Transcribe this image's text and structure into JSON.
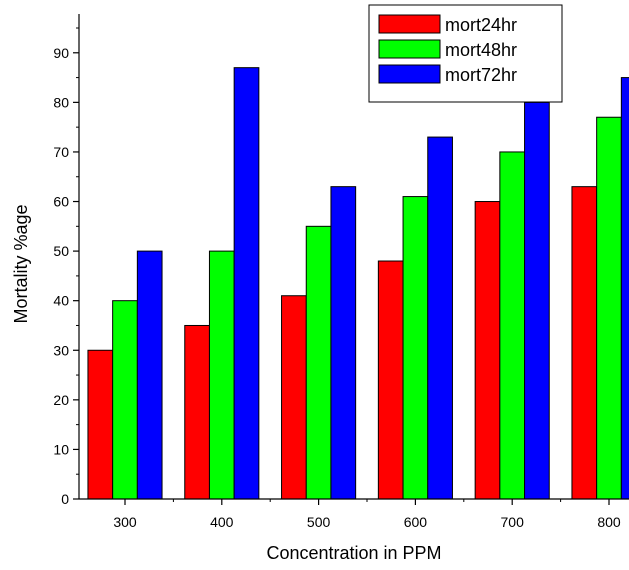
{
  "chart_data": {
    "type": "bar",
    "categories": [
      "300",
      "400",
      "500",
      "600",
      "700",
      "800"
    ],
    "series": [
      {
        "name": "mort24hr",
        "color": "#ff0000",
        "values": [
          30,
          35,
          41,
          48,
          60,
          63
        ]
      },
      {
        "name": "mort48hr",
        "color": "#00ff00",
        "values": [
          40,
          50,
          55,
          61,
          70,
          77
        ]
      },
      {
        "name": "mort72hr",
        "color": "#0000ff",
        "values": [
          50,
          87,
          63,
          73,
          80,
          85
        ]
      }
    ],
    "xlabel": "Concentration in PPM",
    "ylabel": "Mortality %age",
    "ylim": [
      0,
      95
    ],
    "yticks": [
      0,
      10,
      20,
      30,
      40,
      50,
      60,
      70,
      80,
      90
    ],
    "grid": false,
    "legend_position": "top-right"
  }
}
